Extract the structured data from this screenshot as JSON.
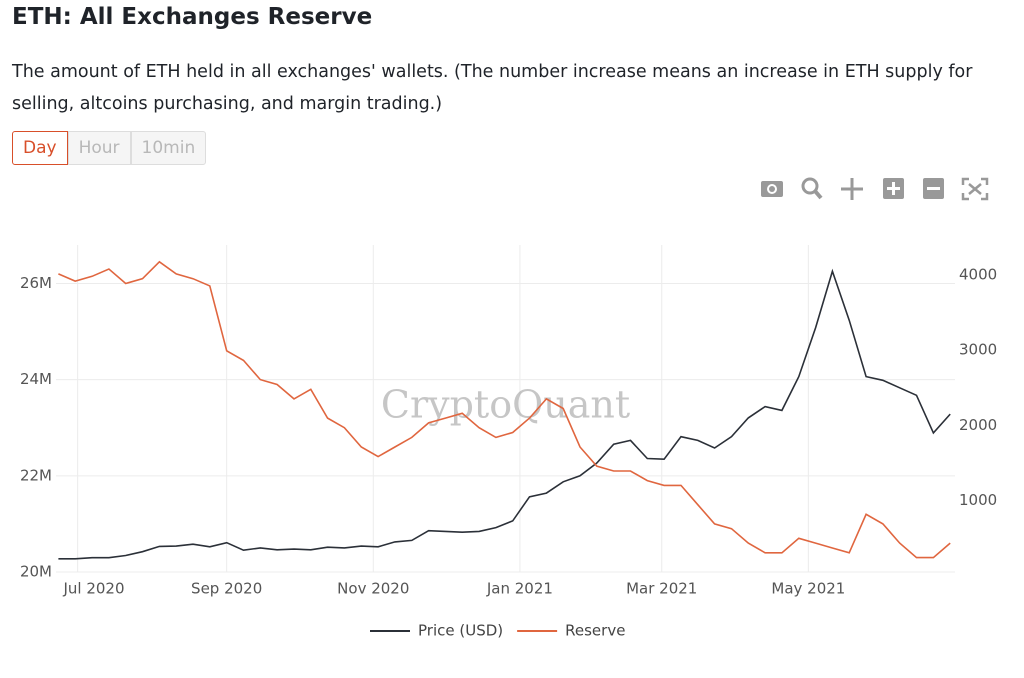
{
  "header": {
    "title": "ETH: All Exchanges Reserve",
    "description": "The amount of ETH held in all exchanges' wallets. (The number increase means an increase in ETH supply for selling, altcoins purchasing, and margin trading.)"
  },
  "buttons": [
    "Day",
    "Hour",
    "10min"
  ],
  "chart_data": {
    "type": "line",
    "watermark": "CryptoQuant",
    "x": [
      "2020-06-23",
      "2020-06-30",
      "2020-07-07",
      "2020-07-14",
      "2020-07-21",
      "2020-07-28",
      "2020-08-04",
      "2020-08-11",
      "2020-08-18",
      "2020-08-25",
      "2020-09-01",
      "2020-09-08",
      "2020-09-15",
      "2020-09-22",
      "2020-09-29",
      "2020-10-06",
      "2020-10-13",
      "2020-10-20",
      "2020-10-27",
      "2020-11-03",
      "2020-11-10",
      "2020-11-17",
      "2020-11-24",
      "2020-12-01",
      "2020-12-08",
      "2020-12-15",
      "2020-12-22",
      "2020-12-29",
      "2021-01-05",
      "2021-01-12",
      "2021-01-19",
      "2021-01-26",
      "2021-02-02",
      "2021-02-09",
      "2021-02-16",
      "2021-02-23",
      "2021-03-02",
      "2021-03-09",
      "2021-03-16",
      "2021-03-23",
      "2021-03-30",
      "2021-04-06",
      "2021-04-13",
      "2021-04-20",
      "2021-04-27",
      "2021-05-04",
      "2021-05-11",
      "2021-05-18",
      "2021-05-25",
      "2021-06-01",
      "2021-06-08",
      "2021-06-15",
      "2021-06-22",
      "2021-06-29"
    ],
    "xlim": [
      "2020-06-22",
      "2021-07-01"
    ],
    "xticks": [
      {
        "value": "2020-07-01",
        "label": "Jul 2020"
      },
      {
        "value": "2020-09-01",
        "label": "Sep 2020"
      },
      {
        "value": "2020-11-01",
        "label": "Nov 2020"
      },
      {
        "value": "2021-01-01",
        "label": "Jan 2021"
      },
      {
        "value": "2021-03-01",
        "label": "Mar 2021"
      },
      {
        "value": "2021-05-01",
        "label": "May 2021"
      }
    ],
    "ylim": [
      20000000,
      26800000
    ],
    "yticks": [
      {
        "value": 20000000,
        "label": "20M"
      },
      {
        "value": 22000000,
        "label": "22M"
      },
      {
        "value": 24000000,
        "label": "24M"
      },
      {
        "value": 26000000,
        "label": "26M"
      }
    ],
    "y2lim": [
      50,
      4400
    ],
    "y2ticks": [
      1000,
      2000,
      3000,
      4000
    ],
    "grid": true,
    "series": [
      {
        "name": "Price (USD)",
        "color": "#2b3038",
        "axis": "y2",
        "values": [
          225,
          226,
          240,
          240,
          270,
          320,
          390,
          395,
          420,
          385,
          440,
          340,
          370,
          345,
          355,
          345,
          380,
          370,
          395,
          385,
          450,
          470,
          600,
          590,
          580,
          590,
          640,
          730,
          1050,
          1100,
          1250,
          1330,
          1500,
          1750,
          1800,
          1560,
          1550,
          1850,
          1800,
          1700,
          1850,
          2100,
          2250,
          2200,
          2650,
          3300,
          4050,
          3400,
          2650,
          2600,
          2500,
          2400,
          1900,
          2150
        ]
      },
      {
        "name": "Reserve",
        "color": "#e0663f",
        "values": [
          26200000,
          26050000,
          26150000,
          26300000,
          26000000,
          26100000,
          26450000,
          26200000,
          26100000,
          25950000,
          24600000,
          24400000,
          24000000,
          23900000,
          23600000,
          23800000,
          23200000,
          23000000,
          22600000,
          22400000,
          22600000,
          22800000,
          23100000,
          23200000,
          23300000,
          23000000,
          22800000,
          22900000,
          23200000,
          23600000,
          23400000,
          22600000,
          22200000,
          22100000,
          22100000,
          21900000,
          21800000,
          21800000,
          21400000,
          21000000,
          20900000,
          20600000,
          20400000,
          20400000,
          20700000,
          20600000,
          20500000,
          20400000,
          21200000,
          21000000,
          20600000,
          20300000,
          20300000,
          20600000
        ]
      }
    ]
  }
}
